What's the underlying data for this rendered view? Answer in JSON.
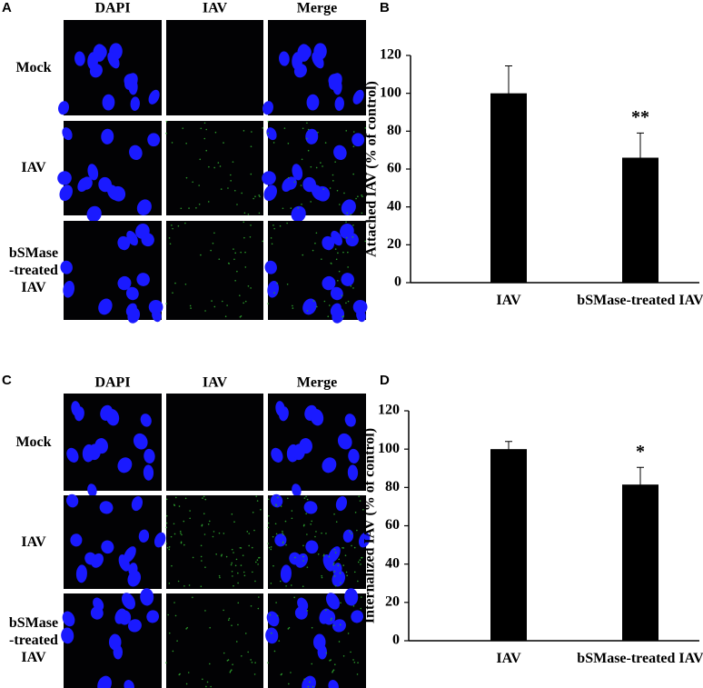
{
  "figure": {
    "panels": [
      {
        "letter": "A",
        "columns": [
          "DAPI",
          "IAV",
          "Merge"
        ],
        "rows": [
          "Mock",
          "IAV",
          "bSMase -treated IAV"
        ]
      },
      {
        "letter": "B"
      },
      {
        "letter": "C",
        "columns": [
          "DAPI",
          "IAV",
          "Merge"
        ],
        "rows": [
          "Mock",
          "IAV",
          "bSMase -treated IAV"
        ]
      },
      {
        "letter": "D"
      }
    ]
  },
  "chart_data": [
    {
      "type": "bar",
      "y_label": "Attached IAV (% of control)",
      "categories": [
        "IAV",
        "bSMase-treated IAV"
      ],
      "values": [
        100,
        66
      ],
      "errors": [
        14.5,
        13
      ],
      "color": "#000000",
      "annotations": [
        {
          "text": "**",
          "x": "bSMase-treated IAV"
        }
      ],
      "ylim": [
        0,
        120
      ],
      "yticks": [
        0,
        20,
        40,
        60,
        80,
        100,
        120
      ],
      "grid": false
    },
    {
      "type": "bar",
      "y_label": "Internalized IAV (% of control)",
      "categories": [
        "IAV",
        "bSMase-treated IAV"
      ],
      "values": [
        100,
        81.5
      ],
      "errors": [
        4,
        9
      ],
      "color": "#000000",
      "annotations": [
        {
          "text": "*",
          "x": "bSMase-treated IAV"
        }
      ],
      "ylim": [
        0,
        120
      ],
      "yticks": [
        0,
        20,
        40,
        60,
        80,
        100,
        120
      ],
      "grid": false
    }
  ]
}
